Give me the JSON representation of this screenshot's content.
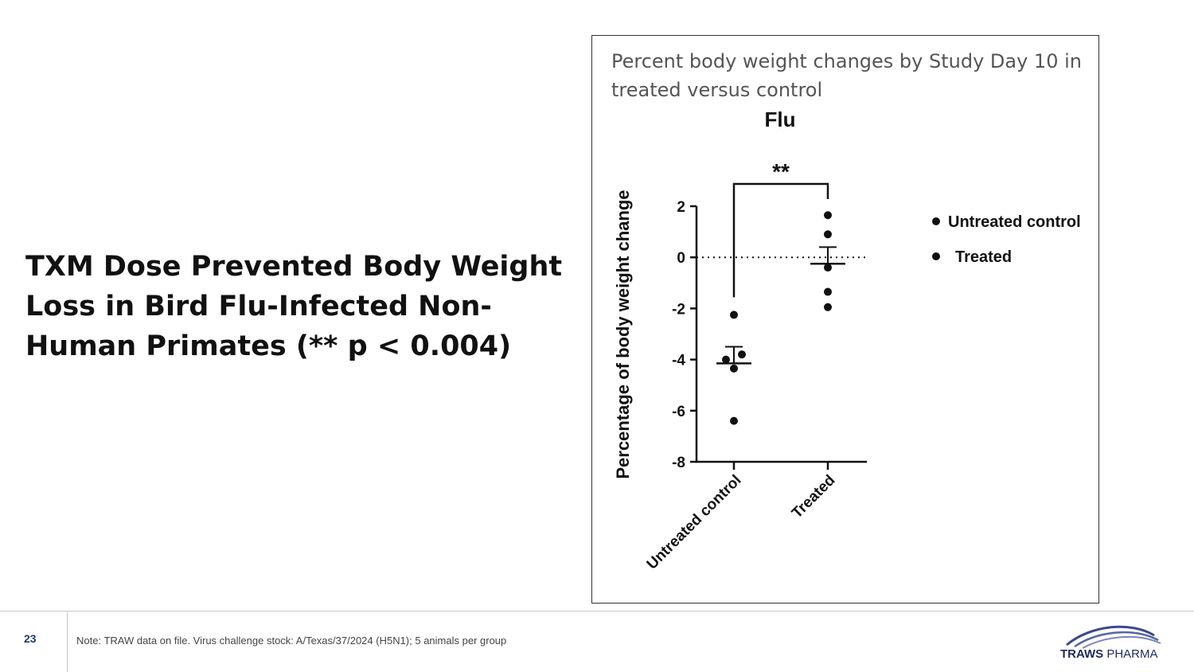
{
  "slide": {
    "headline": "TXM Dose Prevented Body Weight Loss in Bird Flu-Infected Non-Human Primates (** p < 0.004)",
    "panel_caption": "Percent body weight changes by Study Day 10 in treated versus control",
    "page_number": "23",
    "footnote": "Note: TRAW data on file. Virus challenge stock: A/Texas/37/2024 (H5N1); 5 animals per group",
    "logo_text": "TRAWS PHARMA"
  },
  "chart_data": {
    "type": "scatter",
    "title": "Flu",
    "ylabel": "Percentage of body weight change",
    "xlabel": "",
    "categories": [
      "Untreated control",
      "Treated"
    ],
    "ylim": [
      -8,
      2
    ],
    "yticks": [
      2,
      0,
      -2,
      -4,
      -6,
      -8
    ],
    "ytick_labels": [
      "2",
      "0",
      "-2",
      "-4",
      "-6",
      "-8"
    ],
    "reference_line": 0,
    "grid": false,
    "legend_position": "right",
    "significance": "**",
    "series": [
      {
        "name": "Untreated control",
        "values": [
          -2.25,
          -3.8,
          -4.0,
          -4.35,
          -6.4
        ],
        "mean": -4.15,
        "sem": 0.65
      },
      {
        "name": "Treated",
        "values": [
          1.65,
          0.9,
          -0.4,
          -1.35,
          -1.95
        ],
        "mean": -0.25,
        "sem": 0.65
      }
    ]
  }
}
